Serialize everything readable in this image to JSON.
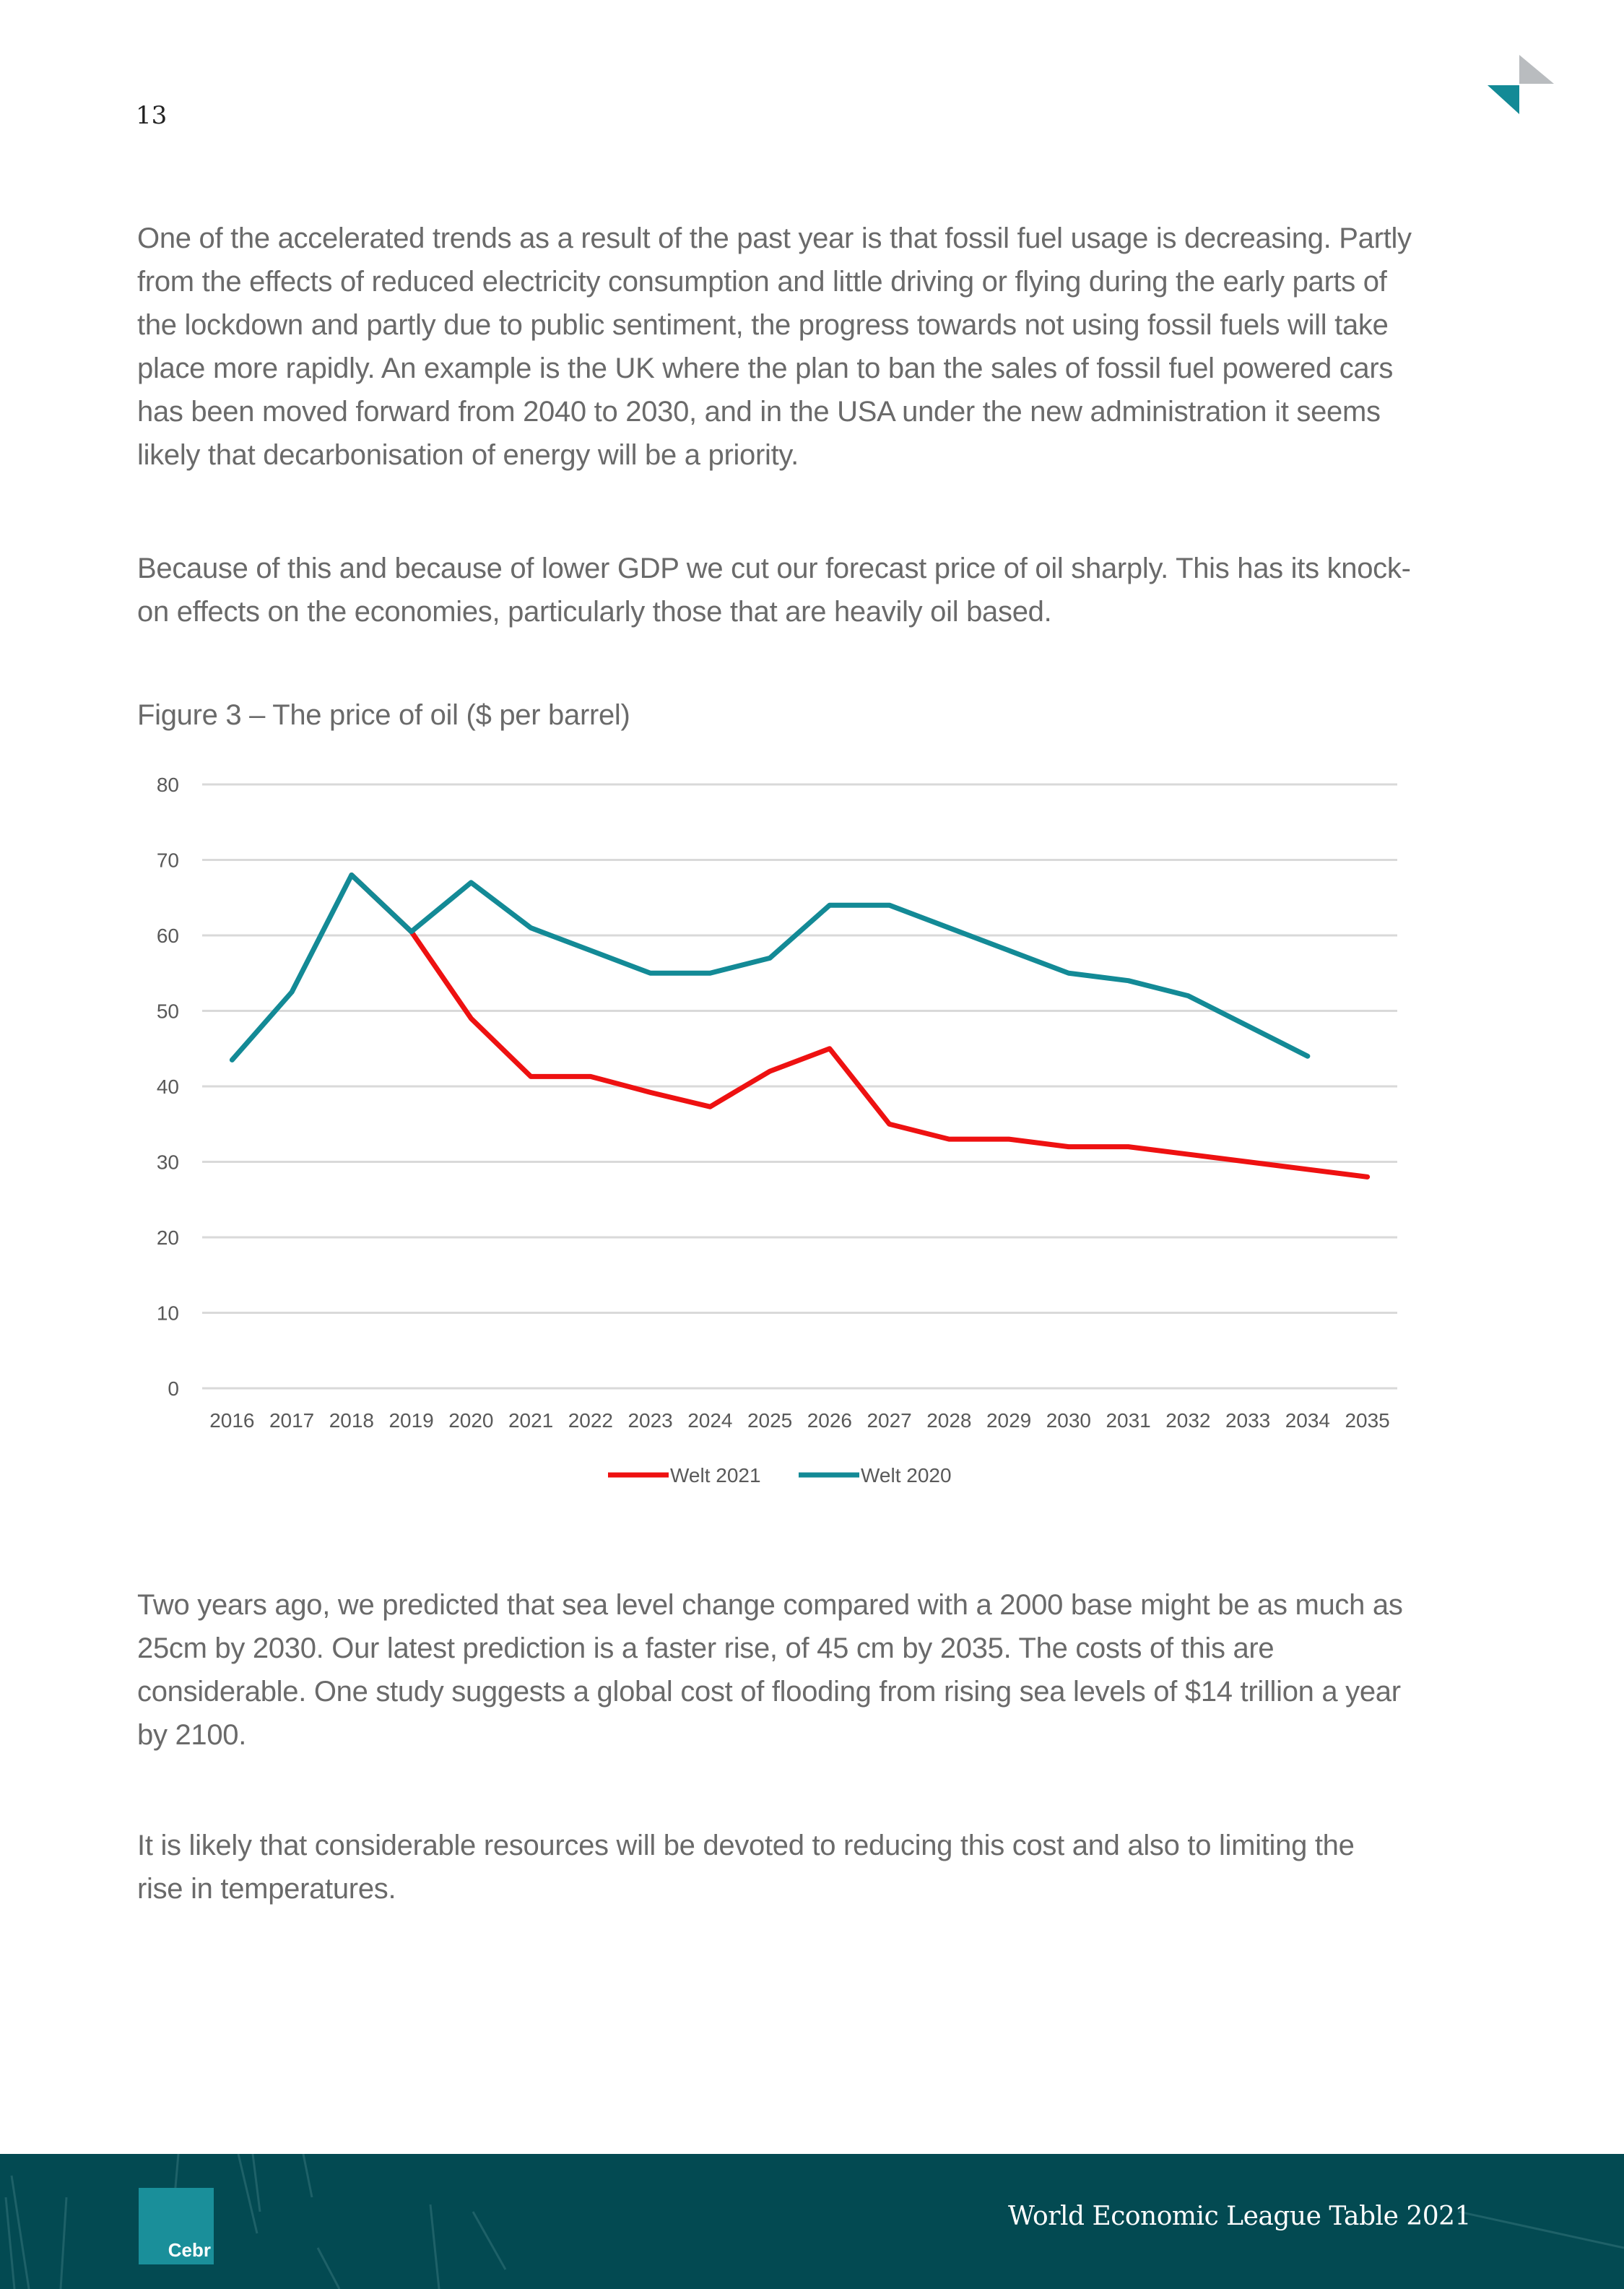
{
  "page_number": "13",
  "paragraphs": [
    {
      "lines": [
        "One of the accelerated trends as a result of the past year is that fossil fuel usage is decreasing. Partly",
        "from the effects of reduced electricity consumption and little driving or flying during the early parts of",
        "the lockdown and partly due to public sentiment, the progress towards not using fossil fuels will take",
        "place more rapidly. An example is the UK where the plan to ban the sales of fossil fuel powered cars",
        "has been moved forward from 2040 to 2030, and in the USA under the new administration it seems",
        "likely that decarbonisation of energy will be a priority."
      ]
    },
    {
      "lines": [
        "Because of this and because of lower GDP we cut our forecast price of oil sharply. This has its knock-",
        "on effects on the economies, particularly those that are heavily oil based."
      ]
    },
    {
      "lines": [
        "Two years ago, we predicted that sea level change compared with a 2000 base might be as much as",
        "25cm by 2030. Our latest prediction is a faster rise, of 45 cm by 2035. The costs of this are",
        "considerable. One study suggests a global cost of flooding from rising sea levels of $14 trillion a year",
        "by 2100."
      ]
    },
    {
      "lines": [
        "It is likely that considerable resources will be devoted to reducing this cost and also to limiting the",
        "rise in temperatures."
      ]
    }
  ],
  "figure_title": "Figure 3 – The price of oil ($ per barrel)",
  "chart_data": {
    "type": "line",
    "title": "Figure 3 – The price of oil ($ per barrel)",
    "xlabel": "",
    "ylabel": "",
    "ylim": [
      0,
      80
    ],
    "yticks": [
      "0",
      "10",
      "20",
      "30",
      "40",
      "50",
      "60",
      "70",
      "80"
    ],
    "categories": [
      "2016",
      "2017",
      "2018",
      "2019",
      "2020",
      "2021",
      "2022",
      "2023",
      "2024",
      "2025",
      "2026",
      "2027",
      "2028",
      "2029",
      "2030",
      "2031",
      "2032",
      "2033",
      "2034",
      "2035"
    ],
    "grid": true,
    "legend": "bottom",
    "series": [
      {
        "name": "Welt 2021",
        "color": "#ee1111",
        "values": [
          null,
          null,
          68,
          60.5,
          49,
          41.3,
          41.3,
          39.2,
          37.3,
          42,
          45,
          35,
          33,
          33,
          32,
          32,
          31,
          30,
          29,
          28
        ]
      },
      {
        "name": "Welt 2020",
        "color": "#138a96",
        "values": [
          43.5,
          52.5,
          68,
          60.5,
          67,
          61,
          58,
          55,
          55,
          57,
          64,
          64,
          61,
          58,
          55,
          54,
          52,
          48,
          44,
          null
        ]
      }
    ]
  },
  "footer": {
    "title": "World Economic League Table 2021",
    "logo_text": "Cebr"
  }
}
